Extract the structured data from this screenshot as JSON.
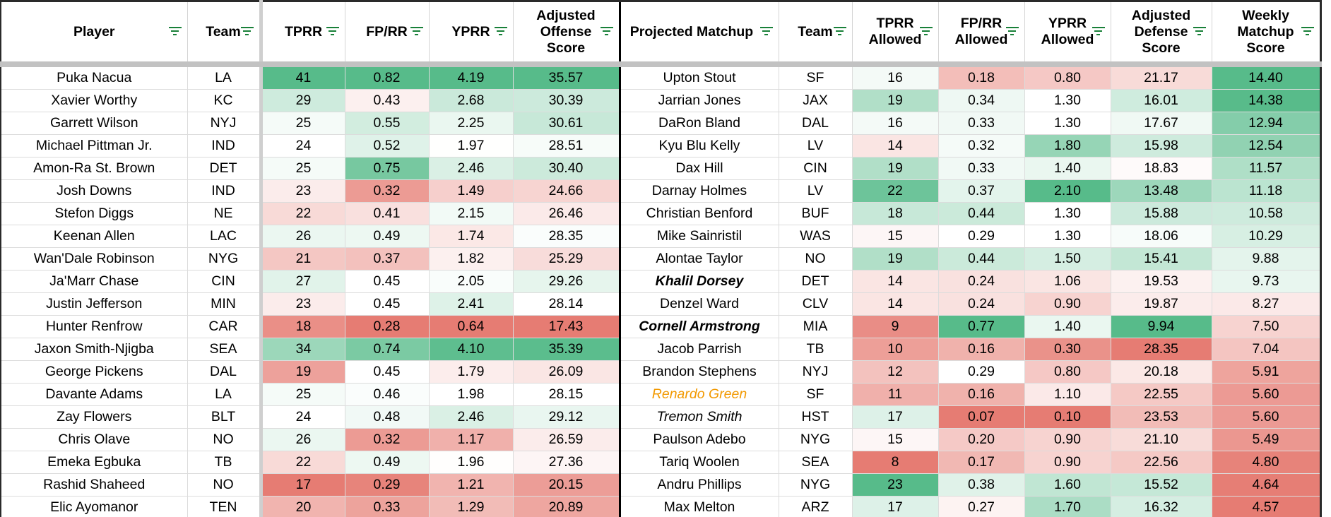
{
  "columns": [
    {
      "key": "player",
      "label": "Player"
    },
    {
      "key": "team",
      "label": "Team"
    },
    {
      "key": "tprr",
      "label": "TPRR"
    },
    {
      "key": "fprr",
      "label": "FP/RR"
    },
    {
      "key": "yprr",
      "label": "YPRR"
    },
    {
      "key": "adj_off",
      "label": "Adjusted Offense Score"
    },
    {
      "key": "matchup",
      "label": "Projected Matchup"
    },
    {
      "key": "def_team",
      "label": "Team"
    },
    {
      "key": "tprr_allowed",
      "label": "TPRR Allowed"
    },
    {
      "key": "fprr_allowed",
      "label": "FP/RR Allowed"
    },
    {
      "key": "yprr_allowed",
      "label": "YPRR Allowed"
    },
    {
      "key": "adj_def",
      "label": "Adjusted Defense Score"
    },
    {
      "key": "weekly",
      "label": "Weekly Matchup Score"
    }
  ],
  "rows": [
    {
      "player": "Puka Nacua",
      "team": "LA",
      "tprr": "41",
      "fprr": "0.82",
      "yprr": "4.19",
      "adj_off": "35.57",
      "matchup": "Upton Stout",
      "def_team": "SF",
      "tprr_allowed": "16",
      "fprr_allowed": "0.18",
      "yprr_allowed": "0.80",
      "adj_def": "21.17",
      "weekly": "14.40"
    },
    {
      "player": "Xavier Worthy",
      "team": "KC",
      "tprr": "29",
      "fprr": "0.43",
      "yprr": "2.68",
      "adj_off": "30.39",
      "matchup": "Jarrian Jones",
      "def_team": "JAX",
      "tprr_allowed": "19",
      "fprr_allowed": "0.34",
      "yprr_allowed": "1.30",
      "adj_def": "16.01",
      "weekly": "14.38"
    },
    {
      "player": "Garrett Wilson",
      "team": "NYJ",
      "tprr": "25",
      "fprr": "0.55",
      "yprr": "2.25",
      "adj_off": "30.61",
      "matchup": "DaRon Bland",
      "def_team": "DAL",
      "tprr_allowed": "16",
      "fprr_allowed": "0.33",
      "yprr_allowed": "1.30",
      "adj_def": "17.67",
      "weekly": "12.94"
    },
    {
      "player": "Michael Pittman Jr.",
      "team": "IND",
      "tprr": "24",
      "fprr": "0.52",
      "yprr": "1.97",
      "adj_off": "28.51",
      "matchup": "Kyu Blu Kelly",
      "def_team": "LV",
      "tprr_allowed": "14",
      "fprr_allowed": "0.32",
      "yprr_allowed": "1.80",
      "adj_def": "15.98",
      "weekly": "12.54"
    },
    {
      "player": "Amon-Ra St. Brown",
      "team": "DET",
      "tprr": "25",
      "fprr": "0.75",
      "yprr": "2.46",
      "adj_off": "30.40",
      "matchup": "Dax Hill",
      "def_team": "CIN",
      "tprr_allowed": "19",
      "fprr_allowed": "0.33",
      "yprr_allowed": "1.40",
      "adj_def": "18.83",
      "weekly": "11.57"
    },
    {
      "player": "Josh Downs",
      "team": "IND",
      "tprr": "23",
      "fprr": "0.32",
      "yprr": "1.49",
      "adj_off": "24.66",
      "matchup": "Darnay Holmes",
      "def_team": "LV",
      "tprr_allowed": "22",
      "fprr_allowed": "0.37",
      "yprr_allowed": "2.10",
      "adj_def": "13.48",
      "weekly": "11.18"
    },
    {
      "player": "Stefon Diggs",
      "team": "NE",
      "tprr": "22",
      "fprr": "0.41",
      "yprr": "2.15",
      "adj_off": "26.46",
      "matchup": "Christian Benford",
      "def_team": "BUF",
      "tprr_allowed": "18",
      "fprr_allowed": "0.44",
      "yprr_allowed": "1.30",
      "adj_def": "15.88",
      "weekly": "10.58"
    },
    {
      "player": "Keenan Allen",
      "team": "LAC",
      "tprr": "26",
      "fprr": "0.49",
      "yprr": "1.74",
      "adj_off": "28.35",
      "matchup": "Mike Sainristil",
      "def_team": "WAS",
      "tprr_allowed": "15",
      "fprr_allowed": "0.29",
      "yprr_allowed": "1.30",
      "adj_def": "18.06",
      "weekly": "10.29"
    },
    {
      "player": "Wan'Dale Robinson",
      "team": "NYG",
      "tprr": "21",
      "fprr": "0.37",
      "yprr": "1.82",
      "adj_off": "25.29",
      "matchup": "Alontae Taylor",
      "def_team": "NO",
      "tprr_allowed": "19",
      "fprr_allowed": "0.44",
      "yprr_allowed": "1.50",
      "adj_def": "15.41",
      "weekly": "9.88"
    },
    {
      "player": "Ja'Marr Chase",
      "team": "CIN",
      "tprr": "27",
      "fprr": "0.45",
      "yprr": "2.05",
      "adj_off": "29.26",
      "matchup": "Khalil Dorsey",
      "matchup_style": "fmt-bold-italic",
      "def_team": "DET",
      "tprr_allowed": "14",
      "fprr_allowed": "0.24",
      "yprr_allowed": "1.06",
      "adj_def": "19.53",
      "weekly": "9.73"
    },
    {
      "player": "Justin Jefferson",
      "team": "MIN",
      "tprr": "23",
      "fprr": "0.45",
      "yprr": "2.41",
      "adj_off": "28.14",
      "matchup": "Denzel Ward",
      "def_team": "CLV",
      "tprr_allowed": "14",
      "fprr_allowed": "0.24",
      "yprr_allowed": "0.90",
      "adj_def": "19.87",
      "weekly": "8.27"
    },
    {
      "player": "Hunter Renfrow",
      "team": "CAR",
      "tprr": "18",
      "fprr": "0.28",
      "yprr": "0.64",
      "adj_off": "17.43",
      "matchup": "Cornell Armstrong",
      "matchup_style": "fmt-bold-italic",
      "def_team": "MIA",
      "tprr_allowed": "9",
      "fprr_allowed": "0.77",
      "yprr_allowed": "1.40",
      "adj_def": "9.94",
      "weekly": "7.50"
    },
    {
      "player": "Jaxon Smith-Njigba",
      "team": "SEA",
      "tprr": "34",
      "fprr": "0.74",
      "yprr": "4.10",
      "adj_off": "35.39",
      "matchup": "Jacob Parrish",
      "def_team": "TB",
      "tprr_allowed": "10",
      "fprr_allowed": "0.16",
      "yprr_allowed": "0.30",
      "adj_def": "28.35",
      "weekly": "7.04"
    },
    {
      "player": "George Pickens",
      "team": "DAL",
      "tprr": "19",
      "fprr": "0.45",
      "yprr": "1.79",
      "adj_off": "26.09",
      "matchup": "Brandon Stephens",
      "def_team": "NYJ",
      "tprr_allowed": "12",
      "fprr_allowed": "0.29",
      "yprr_allowed": "0.80",
      "adj_def": "20.18",
      "weekly": "5.91"
    },
    {
      "player": "Davante Adams",
      "team": "LA",
      "tprr": "25",
      "fprr": "0.46",
      "yprr": "1.98",
      "adj_off": "28.15",
      "matchup": "Renardo Green",
      "matchup_style": "fmt-orange-italic",
      "def_team": "SF",
      "tprr_allowed": "11",
      "fprr_allowed": "0.16",
      "yprr_allowed": "1.10",
      "adj_def": "22.55",
      "weekly": "5.60"
    },
    {
      "player": "Zay Flowers",
      "team": "BLT",
      "tprr": "24",
      "fprr": "0.48",
      "yprr": "2.46",
      "adj_off": "29.12",
      "matchup": "Tremon Smith",
      "matchup_style": "fmt-italic",
      "def_team": "HST",
      "tprr_allowed": "17",
      "fprr_allowed": "0.07",
      "yprr_allowed": "0.10",
      "adj_def": "23.53",
      "weekly": "5.60"
    },
    {
      "player": "Chris Olave",
      "team": "NO",
      "tprr": "26",
      "fprr": "0.32",
      "yprr": "1.17",
      "adj_off": "26.59",
      "matchup": "Paulson Adebo",
      "def_team": "NYG",
      "tprr_allowed": "15",
      "fprr_allowed": "0.20",
      "yprr_allowed": "0.90",
      "adj_def": "21.10",
      "weekly": "5.49"
    },
    {
      "player": "Emeka Egbuka",
      "team": "TB",
      "tprr": "22",
      "fprr": "0.49",
      "yprr": "1.96",
      "adj_off": "27.36",
      "matchup": "Tariq Woolen",
      "def_team": "SEA",
      "tprr_allowed": "8",
      "fprr_allowed": "0.17",
      "yprr_allowed": "0.90",
      "adj_def": "22.56",
      "weekly": "4.80"
    },
    {
      "player": "Rashid Shaheed",
      "team": "NO",
      "tprr": "17",
      "fprr": "0.29",
      "yprr": "1.21",
      "adj_off": "20.15",
      "matchup": "Andru Phillips",
      "def_team": "NYG",
      "tprr_allowed": "23",
      "fprr_allowed": "0.38",
      "yprr_allowed": "1.60",
      "adj_def": "15.52",
      "weekly": "4.64"
    },
    {
      "player": "Elic Ayomanor",
      "team": "TEN",
      "tprr": "20",
      "fprr": "0.33",
      "yprr": "1.29",
      "adj_off": "20.89",
      "matchup": "Max Melton",
      "def_team": "ARZ",
      "tprr_allowed": "17",
      "fprr_allowed": "0.27",
      "yprr_allowed": "1.70",
      "adj_def": "16.32",
      "weekly": "4.57"
    }
  ],
  "colors": {
    "good": "#57bb8a",
    "mid": "#ffffff",
    "bad": "#e67c73",
    "filter_icon": "#188038"
  }
}
